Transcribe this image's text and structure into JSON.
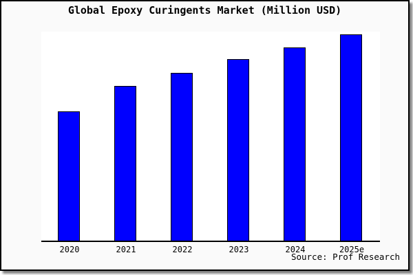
{
  "chart_data": {
    "type": "bar",
    "title": "Global Epoxy Curingents Market (Million USD)",
    "categories": [
      "2020",
      "2021",
      "2022",
      "2023",
      "2024",
      "2025e"
    ],
    "values": [
      188,
      225,
      244,
      264,
      281,
      300
    ],
    "values_note": "no numeric y-axis labels are shown; values are relative bar-height estimates",
    "xlabel": "",
    "ylabel": "",
    "ylim": [
      0,
      304
    ],
    "y_axis_visible": false,
    "gridlines": false,
    "legend": false,
    "source": "Source: Prof Research",
    "colors": {
      "bar_fill": "#0000ff",
      "bar_border": "#000000",
      "axis": "#000000",
      "frame_background": "#fafafa",
      "plot_background": "#ffffff",
      "title_color": "#000000"
    }
  }
}
